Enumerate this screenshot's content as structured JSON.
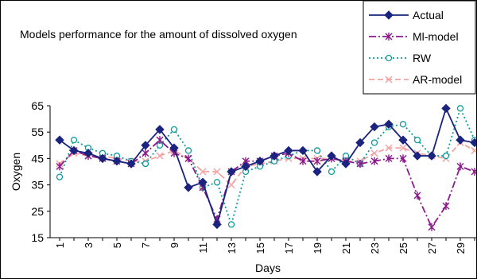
{
  "chart_data": {
    "type": "line",
    "title": "Models performance for the amount of dissolved oxygen",
    "xlabel": "Days",
    "ylabel": "Oxygen",
    "ylim": [
      15,
      65
    ],
    "yticks": [
      15,
      25,
      35,
      45,
      55,
      65
    ],
    "x": [
      1,
      2,
      3,
      4,
      5,
      6,
      7,
      8,
      9,
      10,
      11,
      12,
      13,
      14,
      15,
      16,
      17,
      18,
      19,
      20,
      21,
      22,
      23,
      24,
      25,
      26,
      27,
      28,
      29,
      30
    ],
    "xtick_labels": [
      "1",
      "3",
      "5",
      "7",
      "9",
      "11",
      "13",
      "15",
      "17",
      "19",
      "21",
      "23",
      "25",
      "27",
      "29"
    ],
    "xlim": [
      1,
      30
    ],
    "grid": "none",
    "legend_position": "top-right",
    "series": [
      {
        "name": "Actual",
        "color": "#1a237e",
        "style": "solid",
        "marker": "diamond",
        "values": [
          52,
          48,
          47,
          45,
          44,
          43,
          50,
          56,
          49,
          34,
          36,
          20,
          40,
          42,
          44,
          46,
          48,
          48,
          40,
          46,
          43,
          51,
          57,
          58,
          52,
          46,
          46,
          64,
          52,
          51
        ]
      },
      {
        "name": "Ml-model",
        "color": "#8b1a8b",
        "style": "dashdot",
        "marker": "asterisk",
        "values": [
          42,
          48,
          46,
          45,
          44,
          43,
          47,
          52,
          47,
          45,
          34,
          22,
          40,
          44,
          44,
          46,
          47,
          44,
          44,
          45,
          44,
          43,
          44,
          45,
          45,
          31,
          19,
          27,
          42,
          40
        ]
      },
      {
        "name": "RW",
        "color": "#0f9a9a",
        "style": "dotted",
        "marker": "circle",
        "values": [
          38,
          52,
          49,
          47,
          46,
          44,
          43,
          50,
          56,
          48,
          34,
          36,
          20,
          40,
          42,
          44,
          46,
          48,
          48,
          40,
          46,
          43,
          51,
          57,
          58,
          52,
          46,
          46,
          64,
          52
        ]
      },
      {
        "name": "AR-model",
        "color": "#f4a3a3",
        "style": "dashed",
        "marker": "x",
        "values": [
          43,
          47,
          46,
          46,
          45,
          44,
          44,
          46,
          48,
          45,
          40,
          40,
          35,
          42,
          43,
          44,
          45,
          45,
          45,
          45,
          44,
          44,
          47,
          49,
          49,
          47,
          46,
          45,
          51,
          48
        ]
      }
    ]
  }
}
